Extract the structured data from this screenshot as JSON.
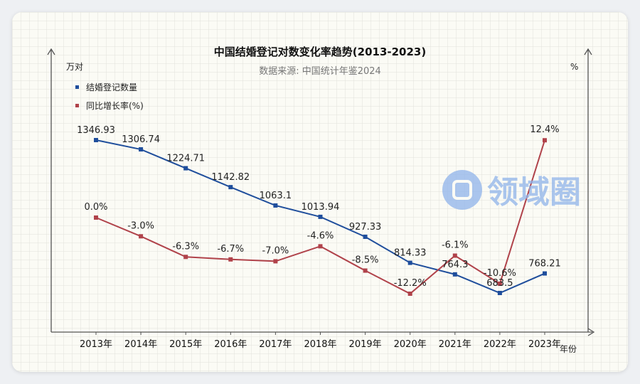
{
  "chart_data": {
    "type": "line",
    "title": "中国结婚登记对数变化率趋势(2013-2023)",
    "subtitle": "数据来源: 中国统计年鉴2024",
    "ylabel_left": "万对",
    "ylabel_right": "%",
    "xlabel": "年份",
    "categories": [
      "2013年",
      "2014年",
      "2015年",
      "2016年",
      "2017年",
      "2018年",
      "2019年",
      "2020年",
      "2021年",
      "2022年",
      "2023年"
    ],
    "series": [
      {
        "name": "结婚登记数量",
        "color": "#1f4e9c",
        "axis": "left",
        "values": [
          1346.93,
          1306.74,
          1224.71,
          1142.82,
          1063.1,
          1013.94,
          927.33,
          814.33,
          764.3,
          683.5,
          768.21
        ],
        "labels": [
          "1346.93",
          "1306.74",
          "1224.71",
          "1142.82",
          "1063.1",
          "1013.94",
          "927.33",
          "814.33",
          "764.3",
          "683.5",
          "768.21"
        ]
      },
      {
        "name": "同比增长率(%)",
        "color": "#b0424a",
        "axis": "right",
        "values": [
          0.0,
          -3.0,
          -6.3,
          -6.7,
          -7.0,
          -4.6,
          -8.5,
          -12.2,
          -6.1,
          -10.6,
          12.4
        ],
        "labels": [
          "0.0%",
          "-3.0%",
          "-6.3%",
          "-6.7%",
          "-7.0%",
          "-4.6%",
          "-8.5%",
          "-12.2%",
          "-6.1%",
          "-10.6%",
          "12.4%"
        ]
      }
    ],
    "legend_position": "top-left",
    "grid": true
  },
  "watermark": {
    "text": "领域圈",
    "color": "#8fb3ea"
  }
}
